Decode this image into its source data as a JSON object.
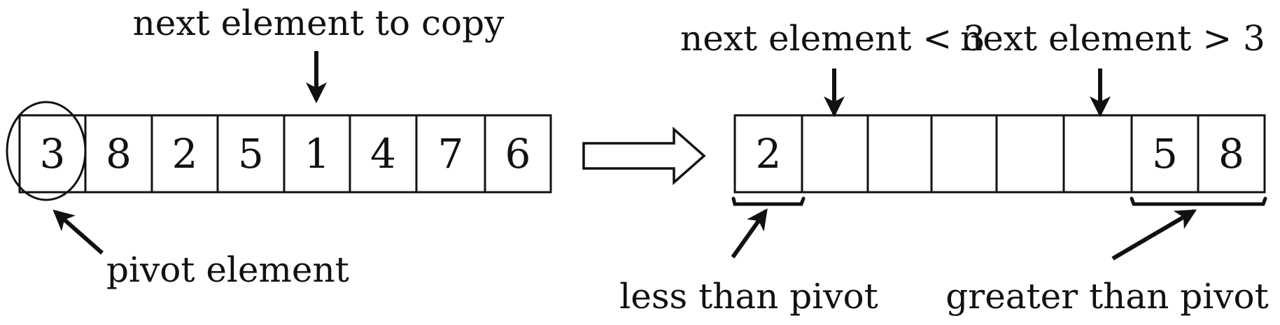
{
  "left_array": {
    "cells": [
      "3",
      "8",
      "2",
      "5",
      "1",
      "4",
      "7",
      "6"
    ]
  },
  "right_array": {
    "cells": [
      "2",
      "",
      "",
      "",
      "",
      "",
      "5",
      "8"
    ]
  },
  "labels": {
    "next_element_to_copy": "next element to copy",
    "pivot_element": "pivot element",
    "next_element_less": "next element < 3",
    "next_element_greater": "next element > 3",
    "less_than_pivot": "less than pivot",
    "greater_than_pivot": "greater than pivot"
  }
}
